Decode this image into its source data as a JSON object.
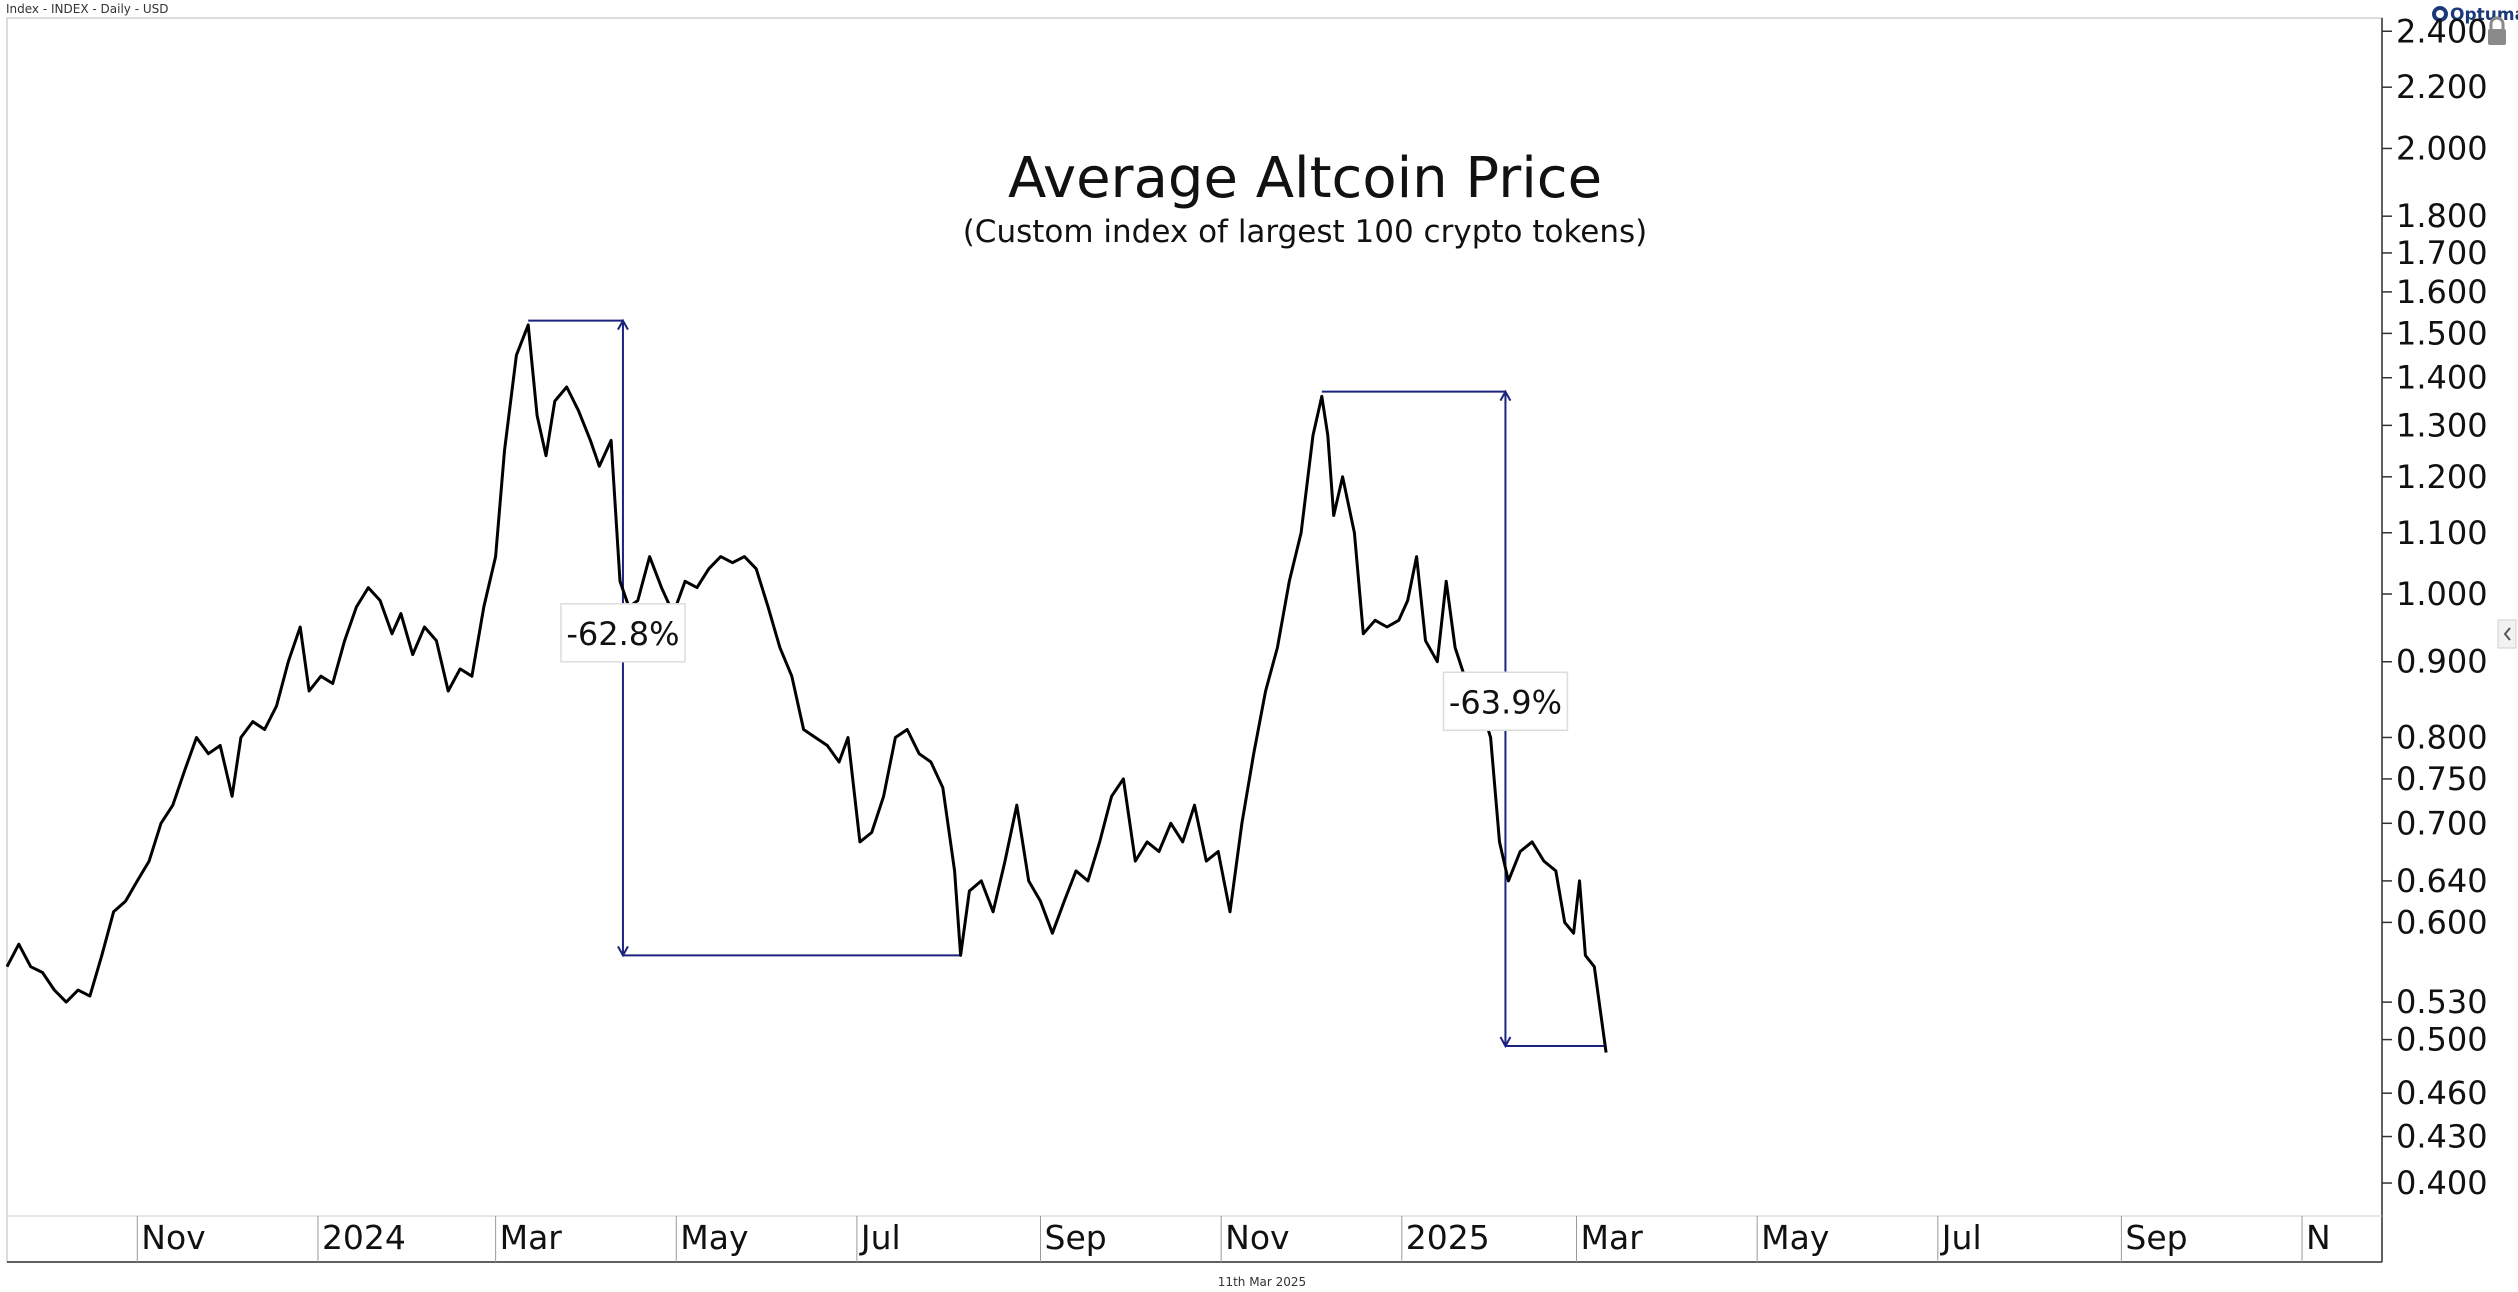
{
  "header": {
    "info": "Index - INDEX - Daily - USD",
    "brand": "Optuma"
  },
  "footer": {
    "date": "11th Mar 2025"
  },
  "chart_data": {
    "type": "line",
    "title": "Average Altcoin Price",
    "subtitle": "(Custom index of largest 100 crypto tokens)",
    "y_scale": "log",
    "y_range": [
      0.38,
      2.45
    ],
    "y_ticks": [
      {
        "value": 2.4,
        "label": "2.400"
      },
      {
        "value": 2.2,
        "label": "2.200"
      },
      {
        "value": 2.0,
        "label": "2.000"
      },
      {
        "value": 1.8,
        "label": "1.800"
      },
      {
        "value": 1.7,
        "label": "1.700"
      },
      {
        "value": 1.6,
        "label": "1.600"
      },
      {
        "value": 1.5,
        "label": "1.500"
      },
      {
        "value": 1.4,
        "label": "1.400"
      },
      {
        "value": 1.3,
        "label": "1.300"
      },
      {
        "value": 1.2,
        "label": "1.200"
      },
      {
        "value": 1.1,
        "label": "1.100"
      },
      {
        "value": 1.0,
        "label": "1.000"
      },
      {
        "value": 0.9,
        "label": "0.900"
      },
      {
        "value": 0.8,
        "label": "0.800"
      },
      {
        "value": 0.75,
        "label": "0.750"
      },
      {
        "value": 0.7,
        "label": "0.700"
      },
      {
        "value": 0.64,
        "label": "0.640"
      },
      {
        "value": 0.6,
        "label": "0.600"
      },
      {
        "value": 0.53,
        "label": "0.530"
      },
      {
        "value": 0.5,
        "label": "0.500"
      },
      {
        "value": 0.46,
        "label": "0.460"
      },
      {
        "value": 0.43,
        "label": "0.430"
      },
      {
        "value": 0.4,
        "label": "0.400"
      }
    ],
    "x_range": [
      "2023-09-18",
      "2025-11-28"
    ],
    "x_ticks": [
      {
        "date": "2023-11-01",
        "label": "Nov"
      },
      {
        "date": "2024-01-01",
        "label": "2024"
      },
      {
        "date": "2024-03-01",
        "label": "Mar"
      },
      {
        "date": "2024-05-01",
        "label": "May"
      },
      {
        "date": "2024-07-01",
        "label": "Jul"
      },
      {
        "date": "2024-09-01",
        "label": "Sep"
      },
      {
        "date": "2024-11-01",
        "label": "Nov"
      },
      {
        "date": "2025-01-01",
        "label": "2025"
      },
      {
        "date": "2025-03-01",
        "label": "Mar"
      },
      {
        "date": "2025-05-01",
        "label": "May"
      },
      {
        "date": "2025-07-01",
        "label": "Jul"
      },
      {
        "date": "2025-09-01",
        "label": "Sep"
      },
      {
        "date": "2025-11-01",
        "label": "N"
      }
    ],
    "series": [
      {
        "color": "#000000",
        "points": [
          [
            "2023-09-18",
            0.56
          ],
          [
            "2023-09-22",
            0.58
          ],
          [
            "2023-09-26",
            0.56
          ],
          [
            "2023-09-30",
            0.555
          ],
          [
            "2023-10-04",
            0.54
          ],
          [
            "2023-10-08",
            0.53
          ],
          [
            "2023-10-12",
            0.54
          ],
          [
            "2023-10-16",
            0.535
          ],
          [
            "2023-10-20",
            0.57
          ],
          [
            "2023-10-24",
            0.61
          ],
          [
            "2023-10-28",
            0.62
          ],
          [
            "2023-11-01",
            0.64
          ],
          [
            "2023-11-05",
            0.66
          ],
          [
            "2023-11-09",
            0.7
          ],
          [
            "2023-11-13",
            0.72
          ],
          [
            "2023-11-17",
            0.76
          ],
          [
            "2023-11-21",
            0.8
          ],
          [
            "2023-11-25",
            0.78
          ],
          [
            "2023-11-29",
            0.79
          ],
          [
            "2023-12-03",
            0.73
          ],
          [
            "2023-12-06",
            0.8
          ],
          [
            "2023-12-10",
            0.82
          ],
          [
            "2023-12-14",
            0.81
          ],
          [
            "2023-12-18",
            0.84
          ],
          [
            "2023-12-22",
            0.9
          ],
          [
            "2023-12-26",
            0.95
          ],
          [
            "2023-12-29",
            0.86
          ],
          [
            "2024-01-02",
            0.88
          ],
          [
            "2024-01-06",
            0.87
          ],
          [
            "2024-01-10",
            0.93
          ],
          [
            "2024-01-14",
            0.98
          ],
          [
            "2024-01-18",
            1.01
          ],
          [
            "2024-01-22",
            0.99
          ],
          [
            "2024-01-26",
            0.94
          ],
          [
            "2024-01-29",
            0.97
          ],
          [
            "2024-02-02",
            0.91
          ],
          [
            "2024-02-06",
            0.95
          ],
          [
            "2024-02-10",
            0.93
          ],
          [
            "2024-02-14",
            0.86
          ],
          [
            "2024-02-18",
            0.89
          ],
          [
            "2024-02-22",
            0.88
          ],
          [
            "2024-02-26",
            0.98
          ],
          [
            "2024-03-01",
            1.06
          ],
          [
            "2024-03-04",
            1.25
          ],
          [
            "2024-03-08",
            1.45
          ],
          [
            "2024-03-12",
            1.52
          ],
          [
            "2024-03-15",
            1.32
          ],
          [
            "2024-03-18",
            1.24
          ],
          [
            "2024-03-21",
            1.35
          ],
          [
            "2024-03-25",
            1.38
          ],
          [
            "2024-03-29",
            1.33
          ],
          [
            "2024-04-02",
            1.27
          ],
          [
            "2024-04-05",
            1.22
          ],
          [
            "2024-04-09",
            1.27
          ],
          [
            "2024-04-12",
            1.02
          ],
          [
            "2024-04-15",
            0.98
          ],
          [
            "2024-04-18",
            0.99
          ],
          [
            "2024-04-22",
            1.06
          ],
          [
            "2024-04-26",
            1.01
          ],
          [
            "2024-04-30",
            0.97
          ],
          [
            "2024-05-04",
            1.02
          ],
          [
            "2024-05-08",
            1.01
          ],
          [
            "2024-05-12",
            1.04
          ],
          [
            "2024-05-16",
            1.06
          ],
          [
            "2024-05-20",
            1.05
          ],
          [
            "2024-05-24",
            1.06
          ],
          [
            "2024-05-28",
            1.04
          ],
          [
            "2024-06-01",
            0.98
          ],
          [
            "2024-06-05",
            0.92
          ],
          [
            "2024-06-09",
            0.88
          ],
          [
            "2024-06-13",
            0.81
          ],
          [
            "2024-06-17",
            0.8
          ],
          [
            "2024-06-21",
            0.79
          ],
          [
            "2024-06-25",
            0.77
          ],
          [
            "2024-06-28",
            0.8
          ],
          [
            "2024-07-02",
            0.68
          ],
          [
            "2024-07-06",
            0.69
          ],
          [
            "2024-07-10",
            0.73
          ],
          [
            "2024-07-14",
            0.8
          ],
          [
            "2024-07-18",
            0.81
          ],
          [
            "2024-07-22",
            0.78
          ],
          [
            "2024-07-26",
            0.77
          ],
          [
            "2024-07-30",
            0.74
          ],
          [
            "2024-08-03",
            0.65
          ],
          [
            "2024-08-05",
            0.57
          ],
          [
            "2024-08-08",
            0.63
          ],
          [
            "2024-08-12",
            0.64
          ],
          [
            "2024-08-16",
            0.61
          ],
          [
            "2024-08-20",
            0.66
          ],
          [
            "2024-08-24",
            0.72
          ],
          [
            "2024-08-28",
            0.64
          ],
          [
            "2024-09-01",
            0.62
          ],
          [
            "2024-09-05",
            0.59
          ],
          [
            "2024-09-09",
            0.62
          ],
          [
            "2024-09-13",
            0.65
          ],
          [
            "2024-09-17",
            0.64
          ],
          [
            "2024-09-21",
            0.68
          ],
          [
            "2024-09-25",
            0.73
          ],
          [
            "2024-09-29",
            0.75
          ],
          [
            "2024-10-03",
            0.66
          ],
          [
            "2024-10-07",
            0.68
          ],
          [
            "2024-10-11",
            0.67
          ],
          [
            "2024-10-15",
            0.7
          ],
          [
            "2024-10-19",
            0.68
          ],
          [
            "2024-10-23",
            0.72
          ],
          [
            "2024-10-27",
            0.66
          ],
          [
            "2024-10-31",
            0.67
          ],
          [
            "2024-11-04",
            0.61
          ],
          [
            "2024-11-08",
            0.7
          ],
          [
            "2024-11-12",
            0.78
          ],
          [
            "2024-11-16",
            0.86
          ],
          [
            "2024-11-20",
            0.92
          ],
          [
            "2024-11-24",
            1.02
          ],
          [
            "2024-11-28",
            1.1
          ],
          [
            "2024-12-02",
            1.28
          ],
          [
            "2024-12-05",
            1.36
          ],
          [
            "2024-12-07",
            1.28
          ],
          [
            "2024-12-09",
            1.13
          ],
          [
            "2024-12-12",
            1.2
          ],
          [
            "2024-12-16",
            1.1
          ],
          [
            "2024-12-19",
            0.94
          ],
          [
            "2024-12-23",
            0.96
          ],
          [
            "2024-12-27",
            0.95
          ],
          [
            "2024-12-31",
            0.96
          ],
          [
            "2025-01-03",
            0.99
          ],
          [
            "2025-01-06",
            1.06
          ],
          [
            "2025-01-09",
            0.93
          ],
          [
            "2025-01-13",
            0.9
          ],
          [
            "2025-01-16",
            1.02
          ],
          [
            "2025-01-19",
            0.92
          ],
          [
            "2025-01-23",
            0.87
          ],
          [
            "2025-01-27",
            0.85
          ],
          [
            "2025-01-31",
            0.8
          ],
          [
            "2025-02-03",
            0.68
          ],
          [
            "2025-02-06",
            0.64
          ],
          [
            "2025-02-10",
            0.67
          ],
          [
            "2025-02-14",
            0.68
          ],
          [
            "2025-02-18",
            0.66
          ],
          [
            "2025-02-22",
            0.65
          ],
          [
            "2025-02-25",
            0.6
          ],
          [
            "2025-02-28",
            0.59
          ],
          [
            "2025-03-02",
            0.64
          ],
          [
            "2025-03-04",
            0.57
          ],
          [
            "2025-03-07",
            0.56
          ],
          [
            "2025-03-11",
            0.49
          ]
        ]
      }
    ],
    "annotations": [
      {
        "label": "-62.8%",
        "x_start": "2024-03-12",
        "x_end": "2024-04-13",
        "x_right": "2024-08-05",
        "y_top": 1.53,
        "y_bottom": 0.57,
        "label_x": "2024-04-13",
        "label_y": 0.94
      },
      {
        "label": "-63.9%",
        "x_start": "2024-12-05",
        "x_end": "2025-02-05",
        "x_right": "2025-03-11",
        "y_top": 1.37,
        "y_bottom": 0.495,
        "label_x": "2025-02-05",
        "label_y": 0.845
      }
    ],
    "grid": false,
    "legend": "none",
    "annotation_color": "#1a237e"
  }
}
